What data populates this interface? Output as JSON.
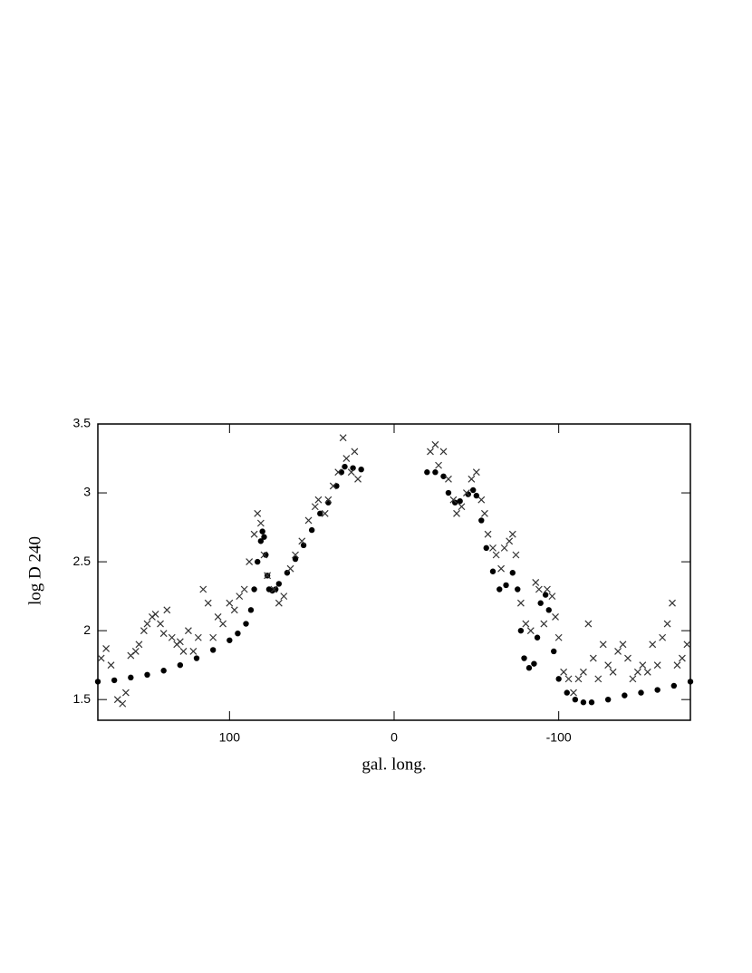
{
  "chart_data": {
    "type": "scatter",
    "x_label": "gal. long.",
    "y_label": "log D 240",
    "xlim": [
      180,
      -180
    ],
    "ylim": [
      1.35,
      3.5
    ],
    "xticks": [
      100,
      0,
      -100
    ],
    "yticks": [
      1.5,
      2,
      2.5,
      3,
      3.5
    ],
    "grid": false,
    "series": [
      {
        "marker": "dot",
        "color": "#000000",
        "x": [
          180,
          170,
          160,
          150,
          140,
          130,
          120,
          110,
          100,
          95,
          90,
          87,
          85,
          83,
          81,
          80,
          79,
          78,
          77,
          76,
          74,
          72,
          70,
          65,
          60,
          55,
          50,
          45,
          40,
          35,
          32,
          30,
          25,
          20,
          -20,
          -25,
          -30,
          -33,
          -37,
          -40,
          -45,
          -48,
          -50,
          -53,
          -56,
          -60,
          -64,
          -68,
          -72,
          -75,
          -77,
          -79,
          -82,
          -85,
          -87,
          -89,
          -92,
          -94,
          -97,
          -100,
          -105,
          -110,
          -115,
          -120,
          -130,
          -140,
          -150,
          -160,
          -170,
          -180
        ],
        "values": [
          1.63,
          1.64,
          1.66,
          1.68,
          1.71,
          1.75,
          1.8,
          1.86,
          1.93,
          1.98,
          2.05,
          2.15,
          2.3,
          2.5,
          2.65,
          2.72,
          2.68,
          2.55,
          2.4,
          2.3,
          2.29,
          2.3,
          2.34,
          2.42,
          2.52,
          2.62,
          2.73,
          2.85,
          2.93,
          3.05,
          3.15,
          3.19,
          3.18,
          3.17,
          3.15,
          3.15,
          3.12,
          3.0,
          2.93,
          2.94,
          2.99,
          3.02,
          2.98,
          2.8,
          2.6,
          2.43,
          2.3,
          2.33,
          2.42,
          2.3,
          2.0,
          1.8,
          1.73,
          1.76,
          1.95,
          2.2,
          2.26,
          2.15,
          1.85,
          1.65,
          1.55,
          1.5,
          1.48,
          1.48,
          1.5,
          1.53,
          1.55,
          1.57,
          1.6,
          1.63
        ]
      },
      {
        "marker": "cross",
        "color": "#333333",
        "x": [
          178,
          175,
          172,
          168,
          165,
          163,
          160,
          157,
          155,
          152,
          150,
          147,
          145,
          142,
          140,
          138,
          135,
          132,
          130,
          128,
          125,
          122,
          119,
          116,
          113,
          110,
          107,
          104,
          100,
          97,
          94,
          91,
          88,
          85,
          83,
          81,
          79,
          77,
          73,
          70,
          67,
          63,
          60,
          56,
          52,
          48,
          46,
          42,
          40,
          37,
          34,
          31,
          29,
          26,
          24,
          22,
          -22,
          -25,
          -27,
          -30,
          -33,
          -36,
          -38,
          -41,
          -44,
          -47,
          -50,
          -53,
          -55,
          -57,
          -60,
          -62,
          -65,
          -67,
          -70,
          -72,
          -74,
          -77,
          -80,
          -83,
          -86,
          -88,
          -91,
          -93,
          -96,
          -98,
          -100,
          -103,
          -106,
          -109,
          -112,
          -115,
          -118,
          -121,
          -124,
          -127,
          -130,
          -133,
          -136,
          -139,
          -142,
          -145,
          -148,
          -151,
          -154,
          -157,
          -160,
          -163,
          -166,
          -169,
          -172,
          -175,
          -178
        ],
        "values": [
          1.8,
          1.87,
          1.75,
          1.5,
          1.47,
          1.55,
          1.82,
          1.85,
          1.9,
          2.0,
          2.05,
          2.1,
          2.12,
          2.05,
          1.98,
          2.15,
          1.95,
          1.9,
          1.92,
          1.85,
          2.0,
          1.85,
          1.95,
          2.3,
          2.2,
          1.95,
          2.1,
          2.05,
          2.2,
          2.15,
          2.25,
          2.3,
          2.5,
          2.7,
          2.85,
          2.78,
          2.55,
          2.4,
          2.3,
          2.2,
          2.25,
          2.45,
          2.55,
          2.65,
          2.8,
          2.9,
          2.95,
          2.85,
          2.95,
          3.05,
          3.15,
          3.4,
          3.25,
          3.15,
          3.3,
          3.1,
          3.3,
          3.35,
          3.2,
          3.3,
          3.1,
          2.95,
          2.85,
          2.9,
          3.0,
          3.1,
          3.15,
          2.95,
          2.85,
          2.7,
          2.6,
          2.55,
          2.45,
          2.6,
          2.65,
          2.7,
          2.55,
          2.2,
          2.05,
          2.0,
          2.35,
          2.3,
          2.05,
          2.3,
          2.25,
          2.1,
          1.95,
          1.7,
          1.65,
          1.55,
          1.65,
          1.7,
          2.05,
          1.8,
          1.65,
          1.9,
          1.75,
          1.7,
          1.85,
          1.9,
          1.8,
          1.65,
          1.7,
          1.75,
          1.7,
          1.9,
          1.75,
          1.95,
          2.05,
          2.2,
          1.75,
          1.8,
          1.9
        ]
      }
    ]
  }
}
